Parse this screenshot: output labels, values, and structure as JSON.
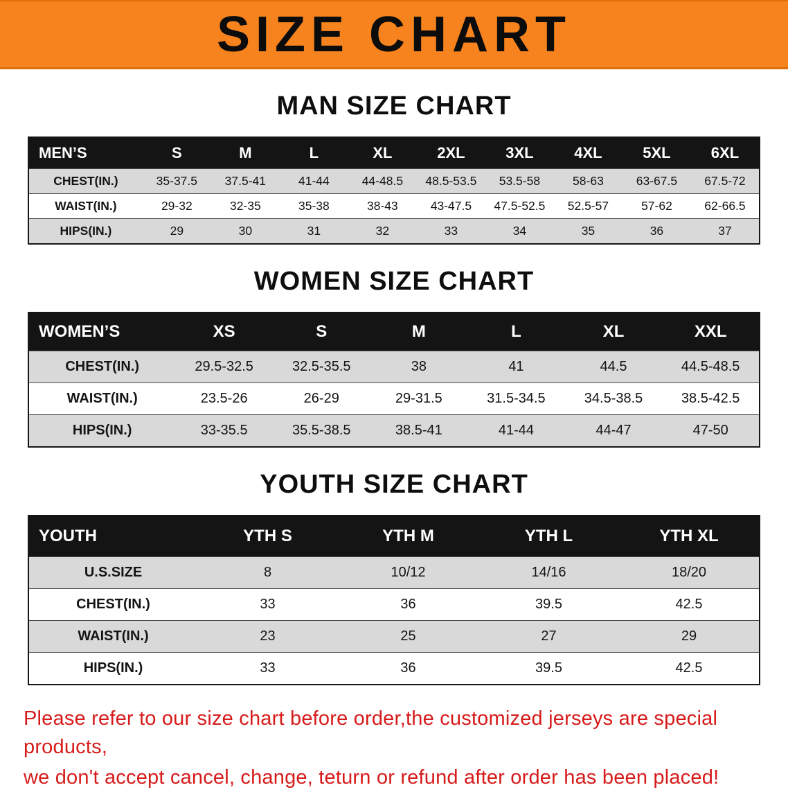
{
  "banner": {
    "title": "SIZE CHART"
  },
  "colors": {
    "banner_bg": "#f6831d",
    "table_header_bg": "#141414",
    "row_shade": "#d9d9d9",
    "notice_text": "#d71b1b"
  },
  "sections": [
    {
      "heading": "MAN SIZE CHART",
      "table": {
        "header": [
          "MEN’S",
          "S",
          "M",
          "L",
          "XL",
          "2XL",
          "3XL",
          "4XL",
          "5XL",
          "6XL"
        ],
        "rows": [
          [
            "CHEST(IN.)",
            "35-37.5",
            "37.5-41",
            "41-44",
            "44-48.5",
            "48.5-53.5",
            "53.5-58",
            "58-63",
            "63-67.5",
            "67.5-72"
          ],
          [
            "WAIST(IN.)",
            "29-32",
            "32-35",
            "35-38",
            "38-43",
            "43-47.5",
            "47.5-52.5",
            "52.5-57",
            "57-62",
            "62-66.5"
          ],
          [
            "HIPS(IN.)",
            "29",
            "30",
            "31",
            "32",
            "33",
            "34",
            "35",
            "36",
            "37"
          ]
        ]
      }
    },
    {
      "heading": "WOMEN SIZE CHART",
      "table": {
        "header": [
          "WOMEN’S",
          "XS",
          "S",
          "M",
          "L",
          "XL",
          "XXL"
        ],
        "rows": [
          [
            "CHEST(IN.)",
            "29.5-32.5",
            "32.5-35.5",
            "38",
            "41",
            "44.5",
            "44.5-48.5"
          ],
          [
            "WAIST(IN.)",
            "23.5-26",
            "26-29",
            "29-31.5",
            "31.5-34.5",
            "34.5-38.5",
            "38.5-42.5"
          ],
          [
            "HIPS(IN.)",
            "33-35.5",
            "35.5-38.5",
            "38.5-41",
            "41-44",
            "44-47",
            "47-50"
          ]
        ]
      }
    },
    {
      "heading": "YOUTH SIZE CHART",
      "table": {
        "header": [
          "YOUTH",
          "YTH S",
          "YTH M",
          "YTH L",
          "YTH XL"
        ],
        "rows": [
          [
            "U.S.SIZE",
            "8",
            "10/12",
            "14/16",
            "18/20"
          ],
          [
            "CHEST(IN.)",
            "33",
            "36",
            "39.5",
            "42.5"
          ],
          [
            "WAIST(IN.)",
            "23",
            "25",
            "27",
            "29"
          ],
          [
            "HIPS(IN.)",
            "33",
            "36",
            "39.5",
            "42.5"
          ]
        ]
      }
    }
  ],
  "footer": {
    "line1": "Please refer to our size chart before order,the customized jerseys are special products,",
    "line2": "we don't accept cancel, change, teturn or refund after order has been placed!"
  }
}
